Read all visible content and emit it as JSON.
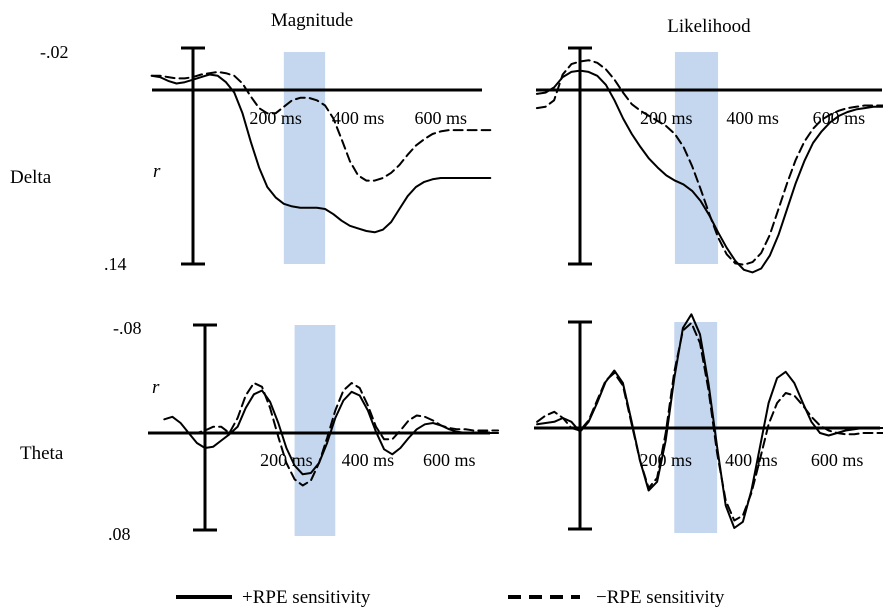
{
  "figure": {
    "column_titles": [
      "Magnitude",
      "Likelihood"
    ],
    "row_labels": [
      "Delta",
      "Theta"
    ],
    "legend": [
      {
        "label": "+RPE sensitivity",
        "style": "solid"
      },
      {
        "label": "−RPE sensitivity",
        "style": "dashed"
      }
    ],
    "colors": {
      "line": "#000000",
      "highlight": "#c5d7ee"
    }
  },
  "chart_data": [
    {
      "type": "line",
      "panel": "delta-magnitude",
      "title": "Magnitude",
      "row": "Delta",
      "ylabel": "r",
      "ylim_labels": [
        "-.02",
        ".14"
      ],
      "ylim": [
        -0.02,
        0.14
      ],
      "y_inverted": true,
      "xlim": [
        -100,
        720
      ],
      "x_ticks": [
        200,
        400,
        600
      ],
      "x_tick_labels": [
        "200 ms",
        "400 ms",
        "600 ms"
      ],
      "highlight_window_ms": [
        220,
        320
      ],
      "series": [
        {
          "style": "solid",
          "x": [
            -100,
            -80,
            -60,
            -40,
            -20,
            0,
            20,
            40,
            60,
            80,
            100,
            120,
            140,
            160,
            180,
            200,
            220,
            240,
            260,
            280,
            300,
            320,
            340,
            360,
            380,
            400,
            420,
            440,
            460,
            480,
            500,
            520,
            540,
            560,
            580,
            600,
            620,
            640,
            660,
            680,
            700,
            720
          ],
          "y": [
            -0.011,
            -0.01,
            -0.007,
            -0.005,
            -0.006,
            -0.008,
            -0.01,
            -0.012,
            -0.011,
            -0.006,
            0.002,
            0.018,
            0.04,
            0.06,
            0.075,
            0.083,
            0.088,
            0.09,
            0.091,
            0.091,
            0.091,
            0.092,
            0.096,
            0.101,
            0.105,
            0.107,
            0.109,
            0.11,
            0.108,
            0.102,
            0.092,
            0.082,
            0.075,
            0.071,
            0.069,
            0.068,
            0.068,
            0.068,
            0.068,
            0.068,
            0.068,
            0.068
          ]
        },
        {
          "style": "dashed",
          "x": [
            -100,
            -80,
            -60,
            -40,
            -20,
            0,
            20,
            40,
            60,
            80,
            100,
            120,
            140,
            160,
            180,
            200,
            220,
            240,
            260,
            280,
            300,
            320,
            340,
            360,
            380,
            400,
            420,
            440,
            460,
            480,
            500,
            520,
            540,
            560,
            580,
            600,
            620,
            640,
            660,
            680,
            700,
            720
          ],
          "y": [
            -0.011,
            -0.011,
            -0.01,
            -0.009,
            -0.009,
            -0.01,
            -0.012,
            -0.013,
            -0.014,
            -0.013,
            -0.011,
            -0.005,
            0.005,
            0.014,
            0.018,
            0.018,
            0.013,
            0.008,
            0.006,
            0.006,
            0.008,
            0.012,
            0.022,
            0.038,
            0.055,
            0.066,
            0.07,
            0.07,
            0.068,
            0.064,
            0.058,
            0.05,
            0.043,
            0.038,
            0.034,
            0.032,
            0.031,
            0.031,
            0.031,
            0.031,
            0.031,
            0.031
          ]
        }
      ]
    },
    {
      "type": "line",
      "panel": "delta-likelihood",
      "title": "Likelihood",
      "row": "Delta",
      "ylabel": "",
      "ylim_labels": [],
      "ylim": [
        -0.02,
        0.14
      ],
      "y_inverted": true,
      "xlim": [
        -100,
        720
      ],
      "x_ticks": [
        200,
        400,
        600
      ],
      "x_tick_labels": [
        "200 ms",
        "400 ms",
        "600 ms"
      ],
      "highlight_window_ms": [
        220,
        320
      ],
      "series": [
        {
          "style": "solid",
          "x": [
            -100,
            -80,
            -60,
            -40,
            -20,
            0,
            20,
            40,
            60,
            80,
            100,
            120,
            140,
            160,
            180,
            200,
            220,
            240,
            260,
            280,
            300,
            320,
            340,
            360,
            380,
            400,
            420,
            440,
            460,
            480,
            500,
            520,
            540,
            560,
            580,
            600,
            620,
            640,
            660,
            680,
            700,
            720
          ],
          "y": [
            0.003,
            0.002,
            -0.002,
            -0.01,
            -0.014,
            -0.015,
            -0.014,
            -0.011,
            -0.004,
            0.008,
            0.022,
            0.034,
            0.044,
            0.053,
            0.06,
            0.066,
            0.07,
            0.073,
            0.078,
            0.086,
            0.097,
            0.11,
            0.122,
            0.132,
            0.139,
            0.141,
            0.138,
            0.128,
            0.112,
            0.092,
            0.072,
            0.055,
            0.041,
            0.032,
            0.025,
            0.02,
            0.017,
            0.015,
            0.014,
            0.013,
            0.013,
            0.012
          ]
        },
        {
          "style": "dashed",
          "x": [
            -100,
            -80,
            -60,
            -40,
            -20,
            0,
            20,
            40,
            60,
            80,
            100,
            120,
            140,
            160,
            180,
            200,
            220,
            240,
            260,
            280,
            300,
            320,
            340,
            360,
            380,
            400,
            420,
            440,
            460,
            480,
            500,
            520,
            540,
            560,
            580,
            600,
            620,
            640,
            660,
            680,
            700,
            720
          ],
          "y": [
            0.014,
            0.013,
            0.008,
            -0.012,
            -0.02,
            -0.022,
            -0.023,
            -0.021,
            -0.016,
            -0.008,
            0.002,
            0.011,
            0.016,
            0.02,
            0.024,
            0.028,
            0.034,
            0.044,
            0.059,
            0.077,
            0.096,
            0.114,
            0.127,
            0.134,
            0.135,
            0.133,
            0.126,
            0.112,
            0.092,
            0.072,
            0.054,
            0.04,
            0.03,
            0.023,
            0.019,
            0.016,
            0.014,
            0.013,
            0.012,
            0.012,
            0.012,
            0.012
          ]
        }
      ]
    },
    {
      "type": "line",
      "panel": "theta-magnitude",
      "title": "",
      "row": "Theta",
      "ylabel": "r",
      "ylim_labels": [
        "-.08",
        ".08"
      ],
      "ylim": [
        -0.08,
        0.08
      ],
      "y_inverted": true,
      "xlim": [
        -100,
        720
      ],
      "x_ticks": [
        200,
        400,
        600
      ],
      "x_tick_labels": [
        "200 ms",
        "400 ms",
        "600 ms"
      ],
      "highlight_window_ms": [
        220,
        320
      ],
      "series": [
        {
          "style": "solid",
          "x": [
            -100,
            -80,
            -60,
            -40,
            -20,
            0,
            20,
            40,
            60,
            80,
            100,
            120,
            140,
            160,
            180,
            200,
            220,
            240,
            260,
            280,
            300,
            320,
            340,
            360,
            380,
            400,
            420,
            440,
            460,
            480,
            500,
            520,
            540,
            560,
            580,
            600,
            620,
            640,
            660,
            680,
            700,
            720
          ],
          "y": [
            -0.011,
            -0.013,
            -0.008,
            0.0,
            0.008,
            0.012,
            0.011,
            0.006,
            0.001,
            -0.005,
            -0.02,
            -0.031,
            -0.034,
            -0.025,
            -0.008,
            0.012,
            0.026,
            0.033,
            0.032,
            0.024,
            0.008,
            -0.012,
            -0.026,
            -0.033,
            -0.03,
            -0.018,
            -0.001,
            0.013,
            0.017,
            0.012,
            0.004,
            -0.003,
            -0.007,
            -0.008,
            -0.006,
            -0.003,
            -0.001,
            0.0,
            0.0,
            0.0,
            0.0,
            0.0
          ]
        },
        {
          "style": "dashed",
          "x": [
            -100,
            -80,
            -60,
            -40,
            -20,
            0,
            20,
            40,
            60,
            80,
            100,
            120,
            140,
            160,
            180,
            200,
            220,
            240,
            260,
            280,
            300,
            320,
            340,
            360,
            380,
            400,
            420,
            440,
            460,
            480,
            500,
            520,
            540,
            560,
            580,
            600,
            620,
            640,
            660,
            680,
            700,
            720
          ],
          "y": [
            0.0,
            0.0,
            0.0,
            0.0,
            0.0,
            -0.002,
            -0.005,
            -0.005,
            0.0,
            -0.012,
            -0.03,
            -0.04,
            -0.037,
            -0.02,
            0.003,
            0.024,
            0.037,
            0.042,
            0.038,
            0.024,
            0.004,
            -0.018,
            -0.034,
            -0.04,
            -0.036,
            -0.022,
            -0.005,
            0.005,
            0.005,
            -0.002,
            -0.01,
            -0.014,
            -0.013,
            -0.01,
            -0.006,
            -0.004,
            -0.003,
            -0.003,
            -0.002,
            -0.002,
            -0.002,
            -0.002
          ]
        }
      ]
    },
    {
      "type": "line",
      "panel": "theta-likelihood",
      "title": "",
      "row": "Theta",
      "ylabel": "",
      "ylim_labels": [],
      "ylim": [
        -0.08,
        0.08
      ],
      "y_inverted": true,
      "xlim": [
        -100,
        720
      ],
      "x_ticks": [
        200,
        400,
        600
      ],
      "x_tick_labels": [
        "200 ms",
        "400 ms",
        "600 ms"
      ],
      "highlight_window_ms": [
        220,
        320
      ],
      "series": [
        {
          "style": "solid",
          "x": [
            -100,
            -80,
            -60,
            -40,
            -20,
            0,
            20,
            40,
            60,
            80,
            100,
            120,
            140,
            160,
            180,
            200,
            220,
            240,
            260,
            280,
            300,
            320,
            340,
            360,
            380,
            400,
            420,
            440,
            460,
            480,
            500,
            520,
            540,
            560,
            580,
            600,
            620,
            640,
            660,
            680,
            700,
            720
          ],
          "y": [
            -0.003,
            -0.004,
            -0.005,
            -0.008,
            -0.005,
            0.003,
            -0.005,
            -0.02,
            -0.037,
            -0.046,
            -0.036,
            -0.006,
            0.026,
            0.05,
            0.043,
            0.01,
            -0.04,
            -0.08,
            -0.091,
            -0.075,
            -0.035,
            0.015,
            0.062,
            0.08,
            0.075,
            0.05,
            0.015,
            -0.02,
            -0.04,
            -0.045,
            -0.036,
            -0.02,
            -0.005,
            0.004,
            0.006,
            0.004,
            0.002,
            0.001,
            0.0,
            0.0,
            0.0,
            0.0
          ]
        },
        {
          "style": "dashed",
          "x": [
            -100,
            -80,
            -60,
            -40,
            -20,
            0,
            20,
            40,
            60,
            80,
            100,
            120,
            140,
            160,
            180,
            200,
            220,
            240,
            260,
            280,
            300,
            320,
            340,
            360,
            380,
            400,
            420,
            440,
            460,
            480,
            500,
            520,
            540,
            560,
            580,
            600,
            620,
            640,
            660,
            680,
            700,
            720
          ],
          "y": [
            -0.005,
            -0.01,
            -0.013,
            -0.008,
            0.0,
            0.002,
            -0.006,
            -0.022,
            -0.038,
            -0.044,
            -0.034,
            -0.004,
            0.026,
            0.048,
            0.04,
            0.004,
            -0.045,
            -0.078,
            -0.084,
            -0.068,
            -0.03,
            0.02,
            0.058,
            0.074,
            0.07,
            0.052,
            0.025,
            -0.003,
            -0.02,
            -0.028,
            -0.026,
            -0.018,
            -0.009,
            -0.002,
            0.002,
            0.004,
            0.005,
            0.005,
            0.004,
            0.004,
            0.004,
            0.004
          ]
        }
      ]
    }
  ]
}
